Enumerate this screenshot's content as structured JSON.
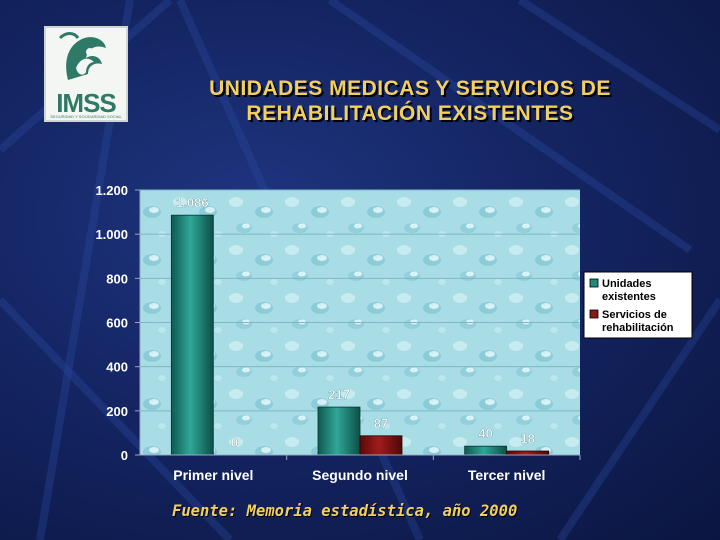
{
  "logo": {
    "text": "IMSS",
    "subtext": "SEGURIDAD Y SOLIDARIDAD SOCIAL"
  },
  "title_line1": "UNIDADES MEDICAS Y SERVICIOS DE",
  "title_line2": "REHABILITACIÓN EXISTENTES",
  "source": "Fuente: Memoria estadística, año 2000",
  "colors": {
    "series1": "#1f8a7d",
    "series2": "#8a1616",
    "title": "#f2d060",
    "axis_text": "#ffffff",
    "plot_bg": "#a8dde6"
  },
  "chart_data": {
    "type": "bar",
    "categories": [
      "Primer nivel",
      "Segundo nivel",
      "Tercer nivel"
    ],
    "series": [
      {
        "name": "Unidades existentes",
        "values": [
          1086,
          217,
          40
        ],
        "labels": [
          "1.086",
          "217",
          "40"
        ]
      },
      {
        "name": "Servicios de rehabilitación",
        "values": [
          0,
          87,
          18
        ],
        "labels": [
          "0",
          "87",
          "18"
        ]
      }
    ],
    "legend": [
      {
        "line1": "Unidades",
        "line2": "existentes"
      },
      {
        "line1": "Servicios de",
        "line2": "rehabilitación"
      }
    ],
    "yticks": [
      0,
      200,
      400,
      600,
      800,
      1000,
      1200
    ],
    "ytick_labels": [
      "0",
      "200",
      "400",
      "600",
      "800",
      "1.000",
      "1.200"
    ],
    "ylim": [
      0,
      1200
    ],
    "title": "",
    "xlabel": "",
    "ylabel": "",
    "grid": true,
    "legend_position": "right"
  }
}
